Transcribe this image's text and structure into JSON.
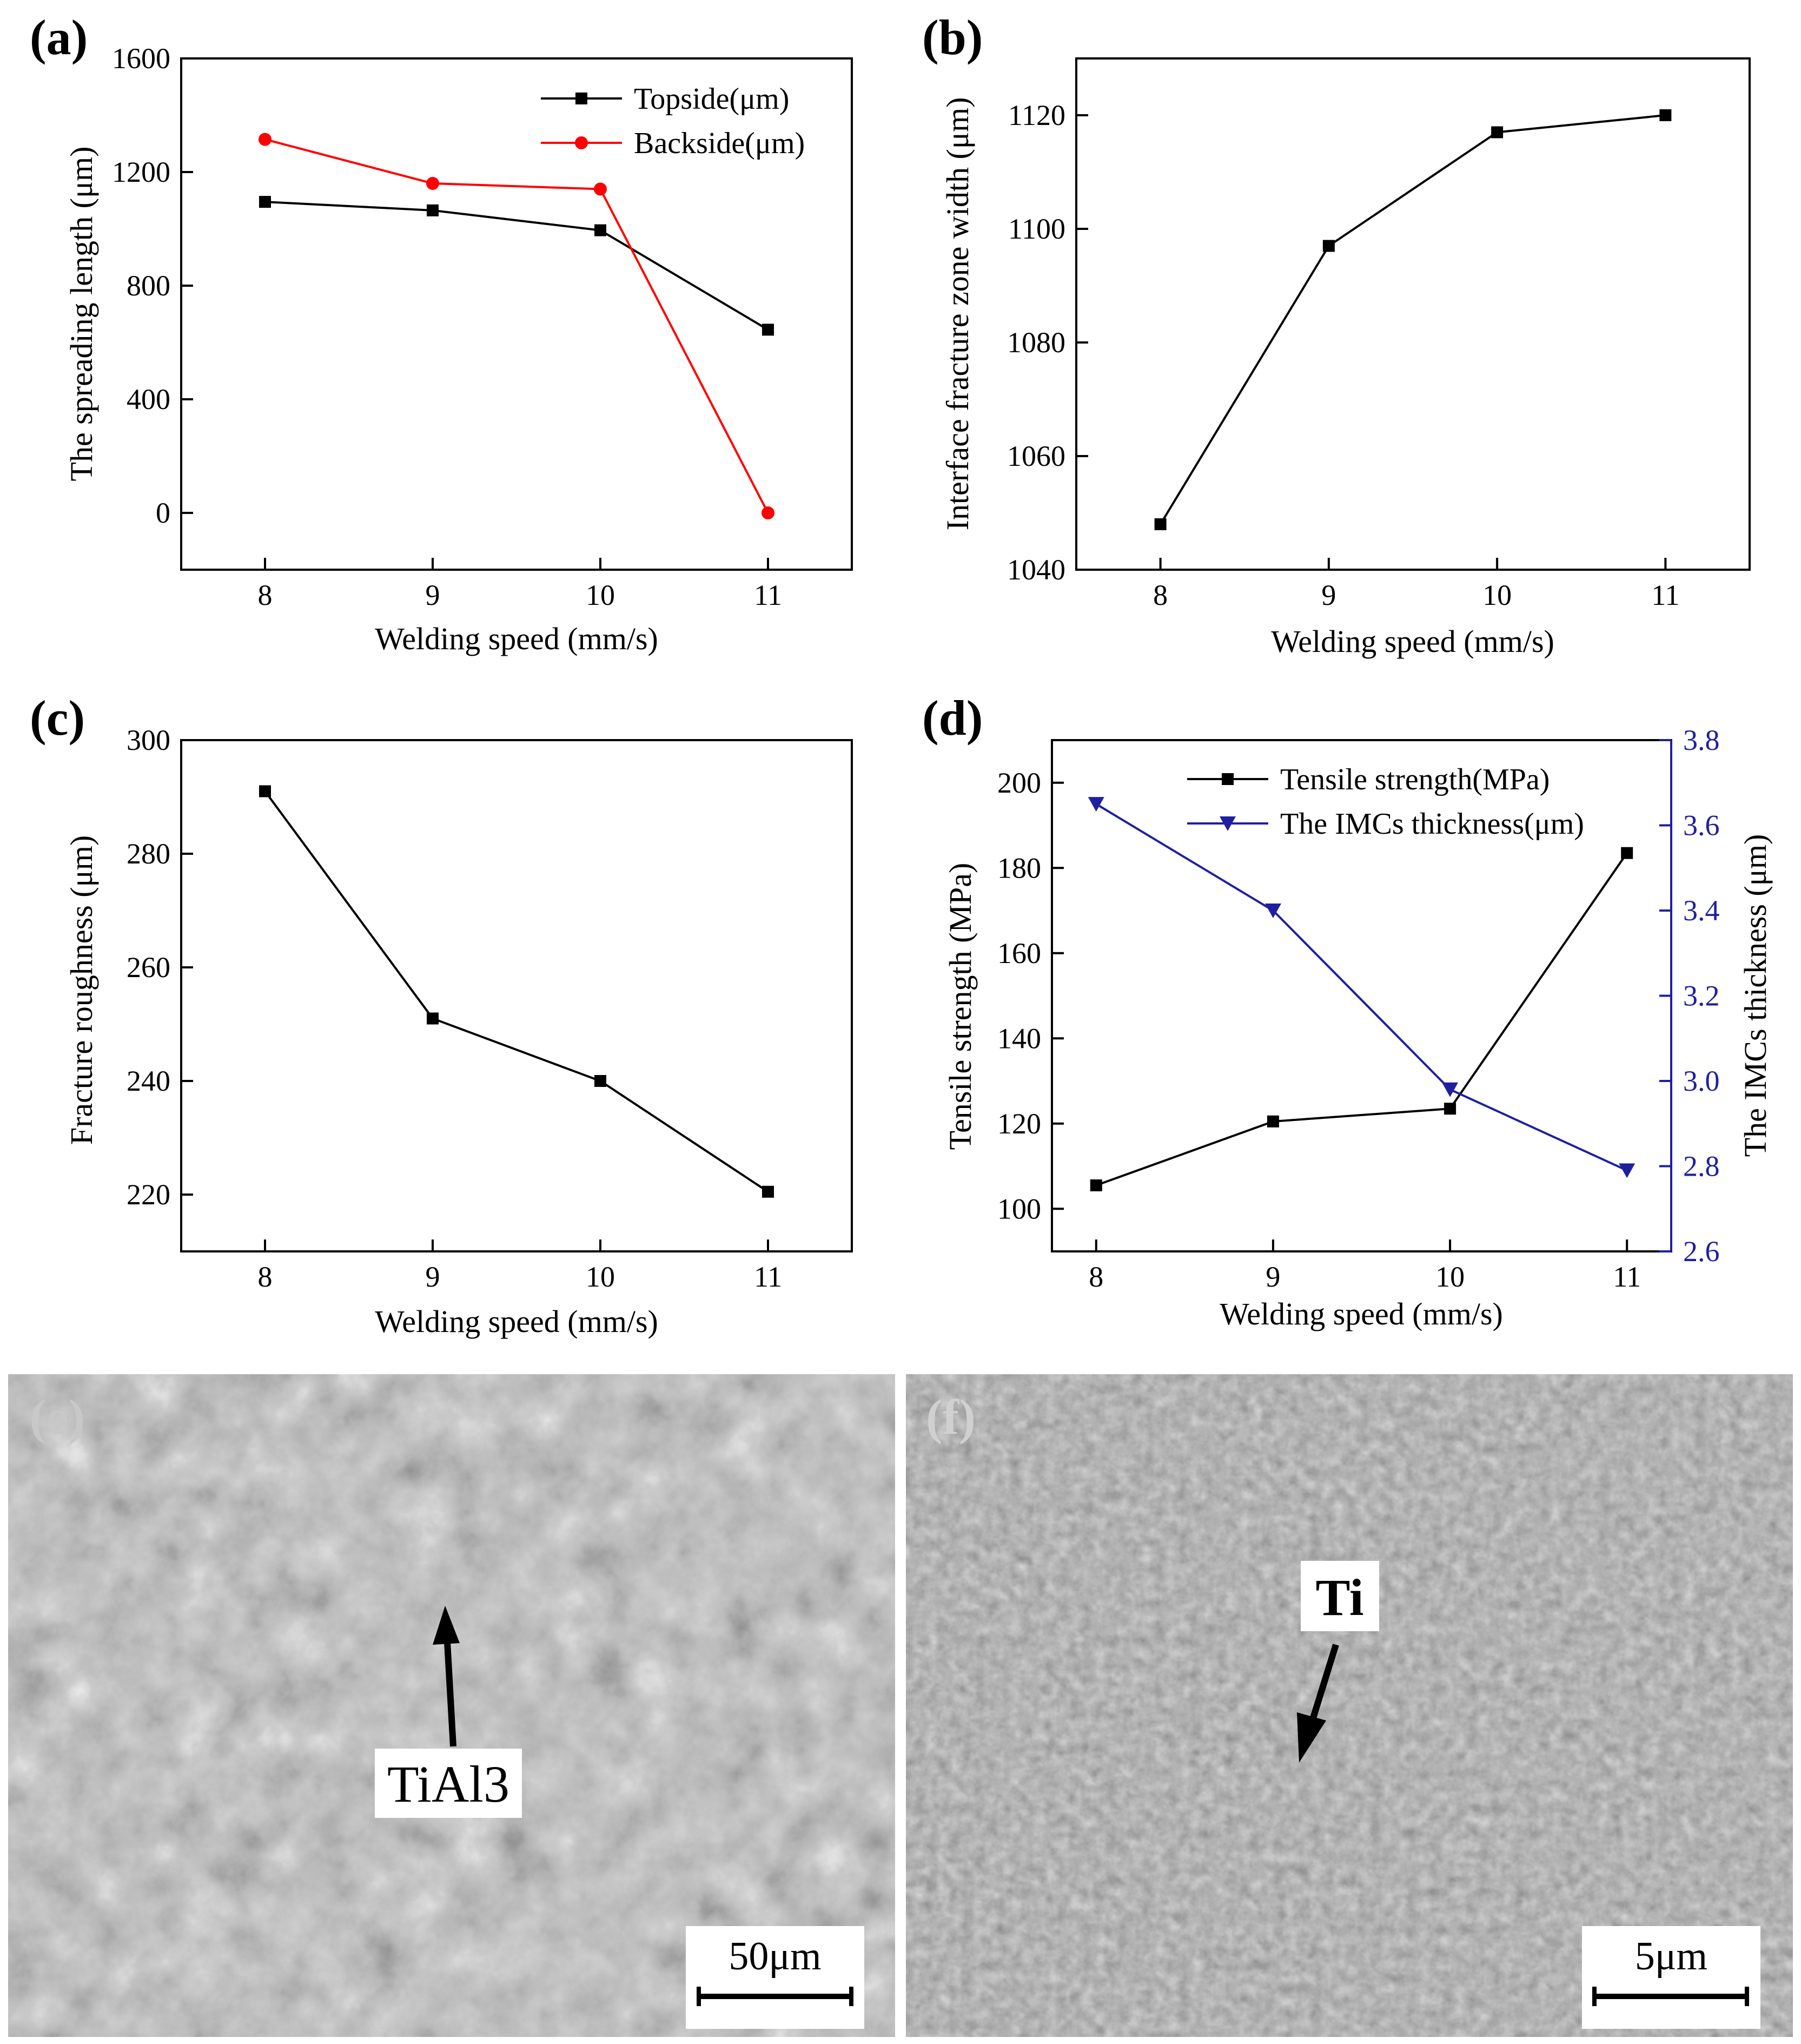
{
  "chart_data": [
    {
      "id": "a",
      "panel_label": "(a)",
      "type": "line",
      "xlabel": "Welding speed (mm/s)",
      "ylabel": "The spreading length (μm)",
      "x": [
        8,
        9,
        10,
        11
      ],
      "xticks": [
        8,
        9,
        10,
        11
      ],
      "xlim": [
        7.5,
        11.5
      ],
      "yticks": [
        0,
        400,
        800,
        1200,
        1600
      ],
      "ylim": [
        -200,
        1600
      ],
      "legend_position": "top-right",
      "series": [
        {
          "name": "Topside(μm)",
          "values": [
            1095,
            1065,
            995,
            645
          ],
          "color": "#000000",
          "marker": "square",
          "axis": "left"
        },
        {
          "name": "Backside(μm)",
          "values": [
            1315,
            1160,
            1140,
            0
          ],
          "color": "#ff0000",
          "marker": "circle",
          "axis": "left"
        }
      ]
    },
    {
      "id": "b",
      "panel_label": "(b)",
      "type": "line",
      "xlabel": "Welding speed (mm/s)",
      "ylabel": "Interface fracture zone width (μm)",
      "x": [
        8,
        9,
        10,
        11
      ],
      "xticks": [
        8,
        9,
        10,
        11
      ],
      "xlim": [
        7.5,
        11.5
      ],
      "yticks": [
        1040,
        1060,
        1080,
        1100,
        1120
      ],
      "ylim": [
        1040,
        1130
      ],
      "series": [
        {
          "values": [
            1048,
            1097,
            1117,
            1120
          ],
          "color": "#000000",
          "marker": "square",
          "axis": "left"
        }
      ]
    },
    {
      "id": "c",
      "panel_label": "(c)",
      "type": "line",
      "xlabel": "Welding speed (mm/s)",
      "ylabel": "Fracture roughness (μm)",
      "x": [
        8,
        9,
        10,
        11
      ],
      "xticks": [
        8,
        9,
        10,
        11
      ],
      "xlim": [
        7.5,
        11.5
      ],
      "yticks": [
        220,
        240,
        260,
        280,
        300
      ],
      "ylim": [
        210,
        300
      ],
      "series": [
        {
          "values": [
            291,
            251,
            240,
            220.5
          ],
          "color": "#000000",
          "marker": "square",
          "axis": "left"
        }
      ]
    },
    {
      "id": "d",
      "panel_label": "(d)",
      "type": "line",
      "xlabel": "Welding speed (mm/s)",
      "ylabel": "Tensile strength (MPa)",
      "y2label": "The IMCs thickness (μm)",
      "x": [
        8,
        9,
        10,
        11
      ],
      "xticks": [
        8,
        9,
        10,
        11
      ],
      "xlim": [
        7.75,
        11.25
      ],
      "yticks": [
        100,
        120,
        140,
        160,
        180,
        200
      ],
      "ylim": [
        90,
        210
      ],
      "y2ticks": [
        "2.6",
        "2.8",
        "3.0",
        "3.2",
        "3.4",
        "3.6",
        "3.8"
      ],
      "y2lim": [
        2.6,
        3.8
      ],
      "y2_color": "#1f1fa0",
      "legend_position": "top-right",
      "series": [
        {
          "name": "Tensile strength(MPa)",
          "values": [
            105.5,
            120.5,
            123.5,
            183.5
          ],
          "color": "#000000",
          "marker": "square",
          "axis": "left"
        },
        {
          "name": "The IMCs thickness(μm)",
          "values": [
            3.65,
            3.4,
            2.98,
            2.79
          ],
          "color": "#1f1fa0",
          "marker": "triangle-down",
          "axis": "right"
        }
      ]
    }
  ],
  "micrographs": [
    {
      "id": "e",
      "panel_label": "(e)",
      "annotation": "TiAl3",
      "scale_bar": "50μm"
    },
    {
      "id": "f",
      "panel_label": "(f)",
      "annotation": "Ti",
      "scale_bar": "5μm"
    }
  ]
}
